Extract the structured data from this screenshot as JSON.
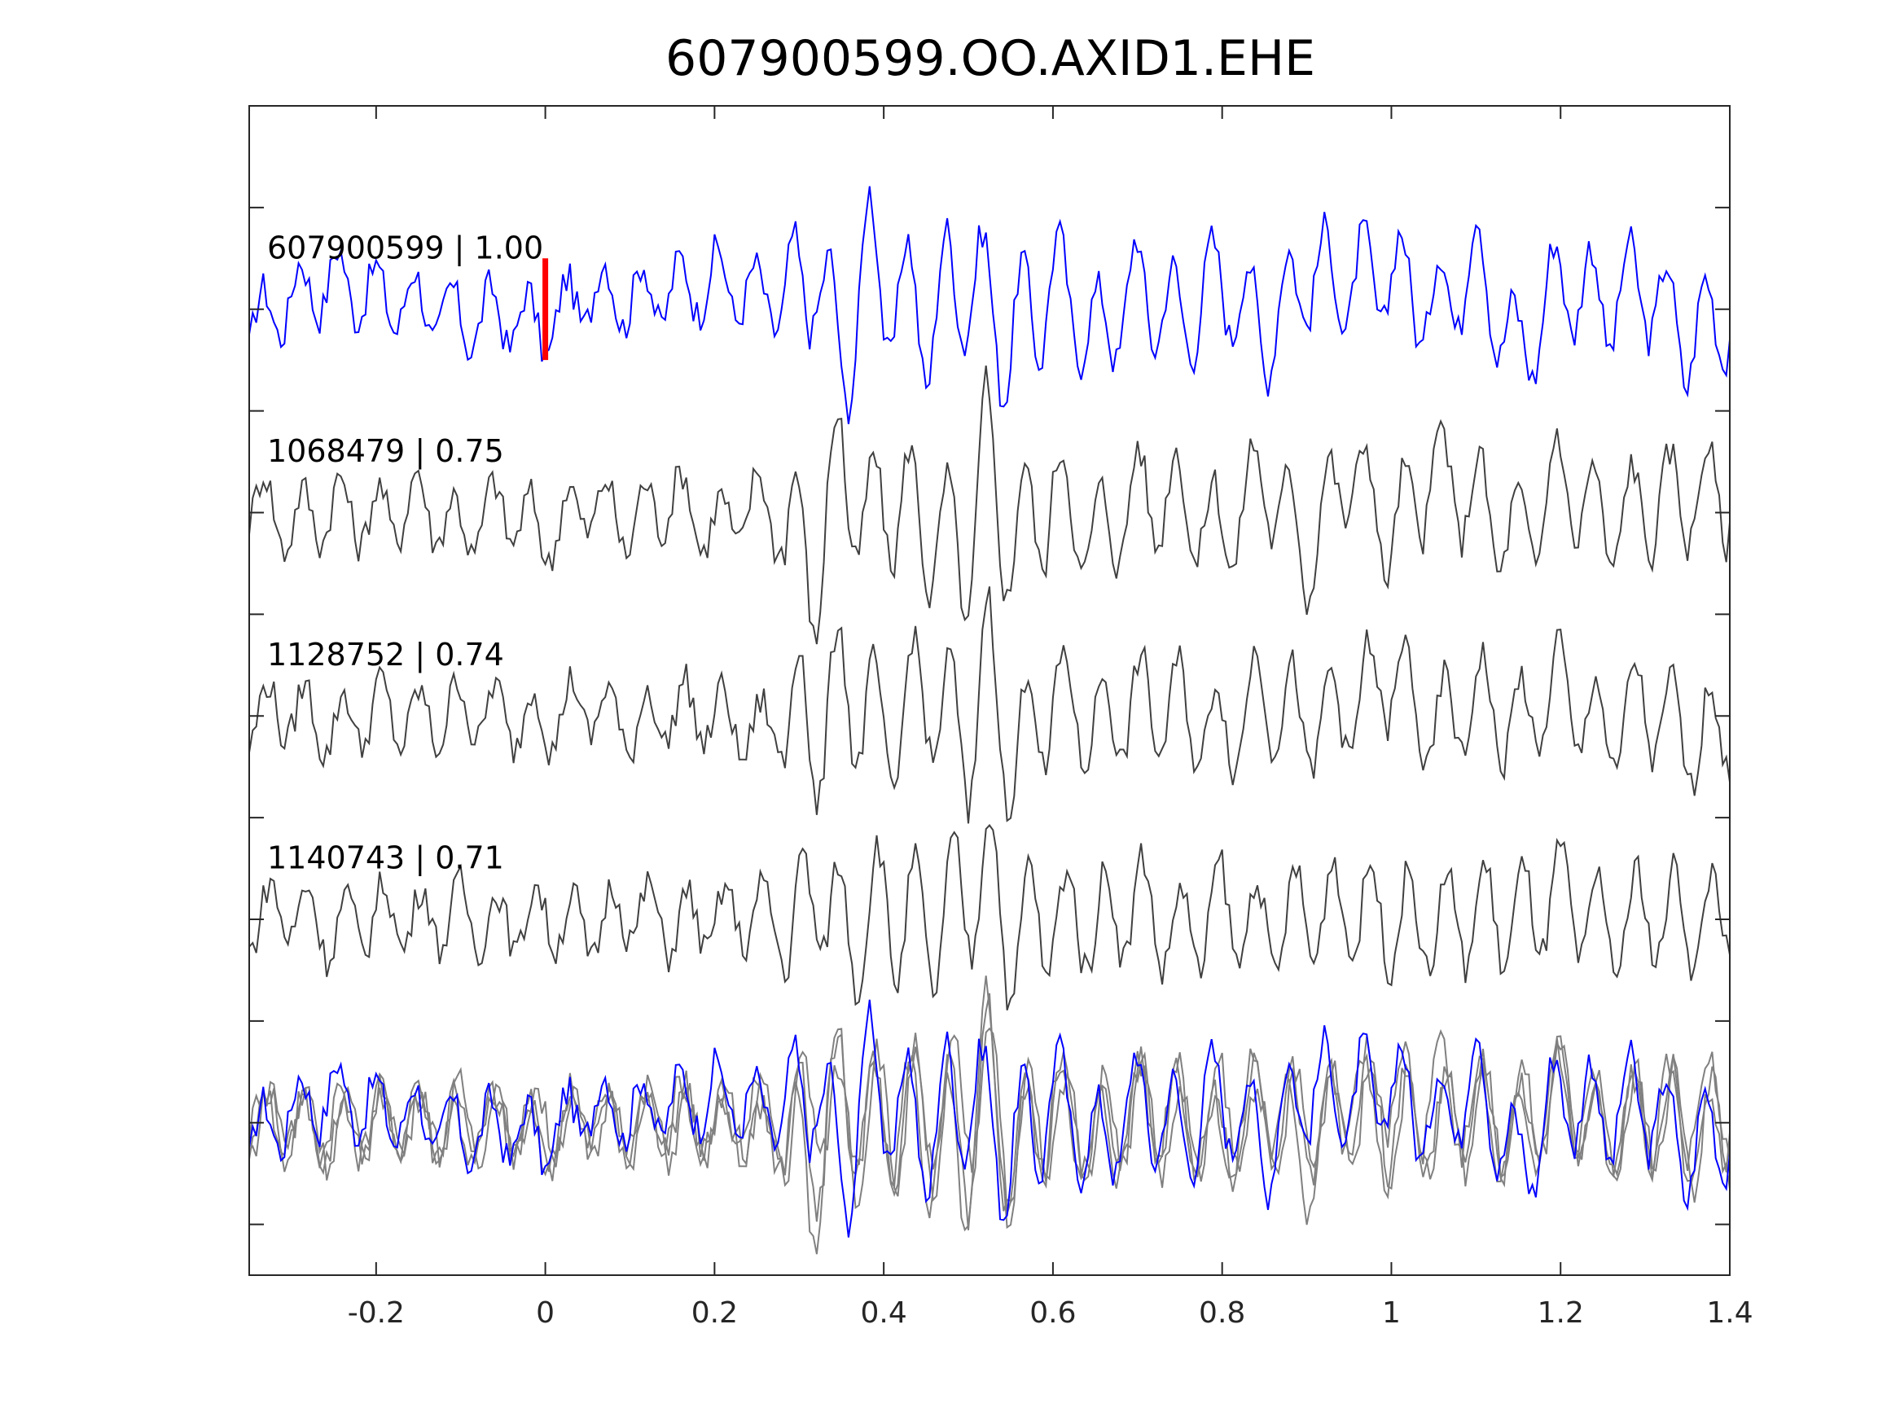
{
  "chart_data": {
    "type": "line",
    "title": "607900599.OO.AXID1.EHE",
    "xlabel": "",
    "ylabel": "",
    "xlim": [
      -0.35,
      1.4
    ],
    "ylim": [
      -5.5,
      6.0
    ],
    "xticks": [
      -0.2,
      0,
      0.2,
      0.4,
      0.6,
      0.8,
      1,
      1.2,
      1.4
    ],
    "xtick_labels": [
      "-0.2",
      "0",
      "0.2",
      "0.4",
      "0.6",
      "0.8",
      "1",
      "1.2",
      "1.4"
    ],
    "yticks": [
      -5,
      -4,
      -3,
      -2,
      -1,
      0,
      1,
      2,
      3,
      4,
      5
    ],
    "ytick_labels": [],
    "grid": false,
    "legend": "none",
    "pick_marker": {
      "x": 0,
      "y_range": [
        3.5,
        4.5
      ],
      "color": "#ff0000"
    },
    "colors": {
      "main": "#0000ff",
      "related": "#404040",
      "overlay_related": "#808080",
      "pick": "#ff0000",
      "axes": "#262626"
    },
    "series": [
      {
        "label": "607900599 | 1.00",
        "offset": 4,
        "color": "#0000ff",
        "x": [
          -0.35,
          -0.3,
          -0.25,
          -0.2,
          -0.15,
          -0.1,
          -0.05,
          0,
          0.05,
          0.1,
          0.15,
          0.2,
          0.25,
          0.3,
          0.32,
          0.35,
          0.38,
          0.4,
          0.45,
          0.5,
          0.55,
          0.6,
          0.65,
          0.7,
          0.75,
          0.8,
          0.85,
          0.9,
          0.95,
          1,
          1.05,
          1.1,
          1.15,
          1.2,
          1.25,
          1.3,
          1.35,
          1.4
        ],
        "y": [
          -0.35,
          0.2,
          0.5,
          0.2,
          0.1,
          -0.2,
          -0.1,
          -0.3,
          0.3,
          0.2,
          0.3,
          0.5,
          0.2,
          0.1,
          0.9,
          -1.1,
          0.9,
          0.4,
          -0.2,
          0.6,
          -0.6,
          0.6,
          -0.5,
          0.4,
          -0.2,
          0.5,
          -0.4,
          0.6,
          0.4,
          0.6,
          0.0,
          0.8,
          -0.8,
          0.5,
          0.1,
          0.4,
          -0.5,
          0.0
        ]
      },
      {
        "label": "1068479 | 0.75",
        "offset": 2,
        "color": "#404040",
        "x": [
          -0.35,
          -0.3,
          -0.25,
          -0.2,
          -0.15,
          -0.1,
          -0.05,
          0,
          0.05,
          0.1,
          0.15,
          0.2,
          0.25,
          0.3,
          0.32,
          0.35,
          0.38,
          0.4,
          0.45,
          0.5,
          0.52,
          0.55,
          0.6,
          0.65,
          0.7,
          0.75,
          0.8,
          0.85,
          0.9,
          0.95,
          1,
          1.05,
          1.1,
          1.15,
          1.2,
          1.25,
          1.3,
          1.35,
          1.4
        ],
        "y": [
          0.3,
          -0.2,
          0.1,
          -0.1,
          0.2,
          -0.3,
          0.1,
          -0.4,
          0.2,
          -0.2,
          0.3,
          -0.3,
          0.2,
          -0.5,
          -1.1,
          1.0,
          -0.4,
          0.3,
          -0.2,
          -0.8,
          1.1,
          -0.6,
          0.4,
          -0.5,
          0.3,
          0.2,
          -0.4,
          0.6,
          -0.7,
          0.8,
          -0.4,
          0.7,
          0.2,
          -0.5,
          0.6,
          -0.2,
          0.1,
          0.3,
          0.3
        ]
      },
      {
        "label": "1128752 | 0.74",
        "offset": 0,
        "color": "#404040",
        "x": [
          -0.35,
          -0.3,
          -0.25,
          -0.2,
          -0.15,
          -0.1,
          -0.05,
          0,
          0.05,
          0.1,
          0.15,
          0.2,
          0.25,
          0.3,
          0.32,
          0.35,
          0.4,
          0.45,
          0.5,
          0.52,
          0.55,
          0.6,
          0.65,
          0.7,
          0.75,
          0.8,
          0.85,
          0.9,
          0.95,
          1,
          1.05,
          1.1,
          1.15,
          1.2,
          1.25,
          1.3,
          1.35,
          1.4
        ],
        "y": [
          0.0,
          0.1,
          -0.2,
          0.1,
          -0.1,
          0.1,
          0.0,
          -0.1,
          0.2,
          -0.2,
          0.1,
          0.0,
          -0.3,
          0.1,
          -0.5,
          0.6,
          -0.4,
          0.5,
          -0.6,
          1.1,
          -0.8,
          0.4,
          -0.2,
          0.2,
          0.1,
          -0.3,
          0.4,
          -0.2,
          0.1,
          0.7,
          -0.3,
          0.3,
          -0.2,
          0.5,
          -0.3,
          0.2,
          -0.4,
          -0.2
        ]
      },
      {
        "label": "1140743 | 0.71",
        "offset": -2,
        "color": "#404040",
        "x": [
          -0.35,
          -0.3,
          -0.25,
          -0.2,
          -0.15,
          -0.1,
          -0.05,
          0,
          0.05,
          0.1,
          0.15,
          0.2,
          0.25,
          0.3,
          0.32,
          0.35,
          0.4,
          0.45,
          0.5,
          0.52,
          0.55,
          0.6,
          0.65,
          0.7,
          0.75,
          0.8,
          0.85,
          0.9,
          0.95,
          1,
          1.05,
          1.1,
          1.15,
          1.2,
          1.25,
          1.3,
          1.35,
          1.4
        ],
        "y": [
          0.0,
          0.2,
          -0.2,
          0.1,
          0.0,
          0.1,
          -0.1,
          0.1,
          -0.2,
          0.2,
          -0.1,
          0.0,
          0.1,
          -0.2,
          0.7,
          -0.3,
          0.2,
          -0.2,
          0.4,
          0.9,
          -0.4,
          0.1,
          -0.1,
          0.3,
          -0.3,
          0.2,
          -0.2,
          0.1,
          0.2,
          0.0,
          -0.1,
          0.1,
          0.0,
          0.4,
          -0.2,
          0.1,
          0.0,
          0.0
        ]
      }
    ],
    "overlay": {
      "offset": -4,
      "note": ""
    }
  }
}
